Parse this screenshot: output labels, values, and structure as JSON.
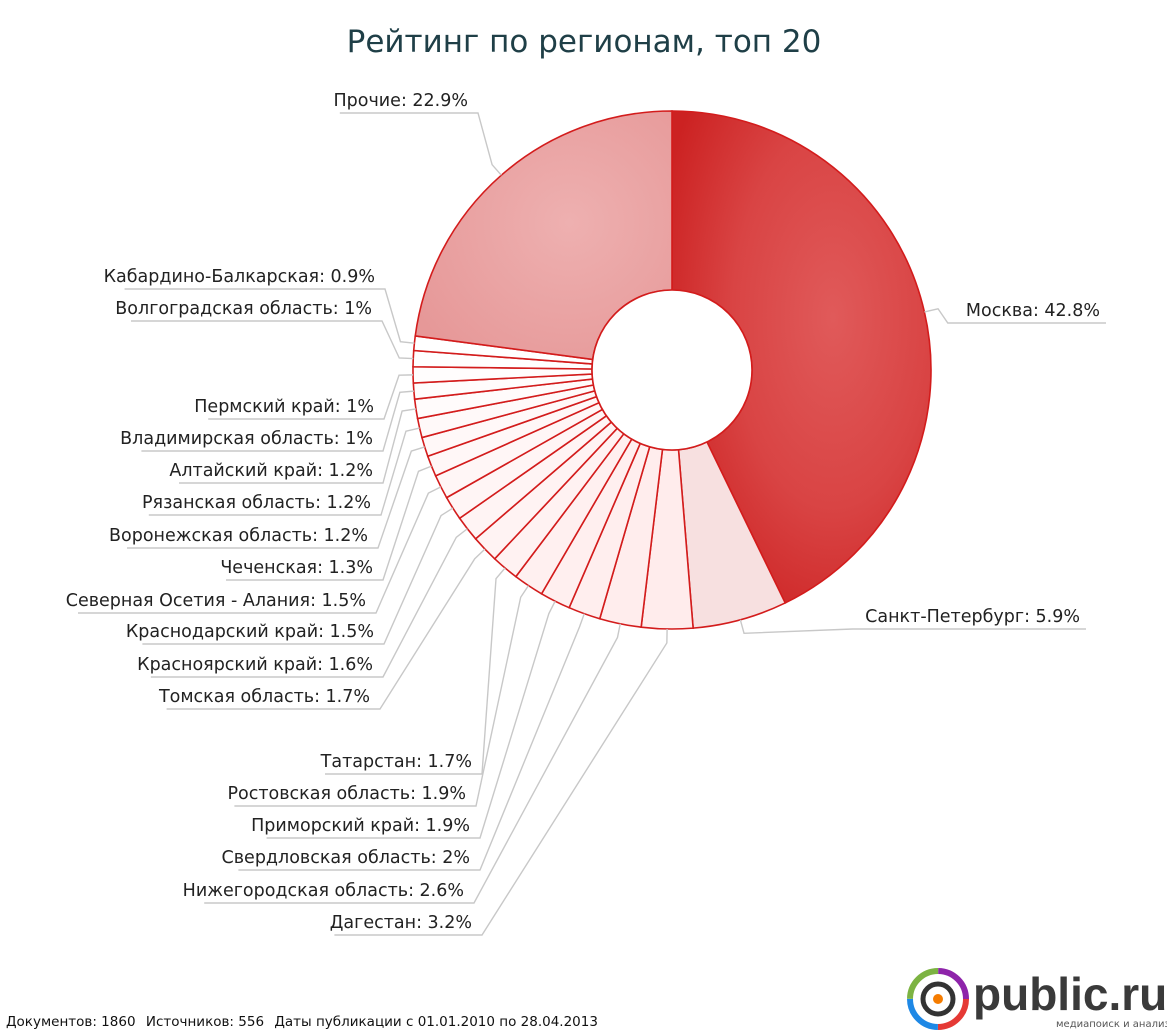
{
  "chart_data": {
    "type": "pie",
    "title": "Рейтинг по регионам, топ 20",
    "slices": [
      {
        "name": "Москва",
        "value": 42.8,
        "label": "Москва: 42.8%"
      },
      {
        "name": "Санкт-Петербург",
        "value": 5.9,
        "label": "Санкт-Петербург: 5.9%"
      },
      {
        "name": "Дагестан",
        "value": 3.2,
        "label": "Дагестан: 3.2%"
      },
      {
        "name": "Нижегородская область",
        "value": 2.6,
        "label": "Нижегородская область: 2.6%"
      },
      {
        "name": "Свердловская область",
        "value": 2.0,
        "label": "Свердловская область: 2%"
      },
      {
        "name": "Приморский край",
        "value": 1.9,
        "label": "Приморский край: 1.9%"
      },
      {
        "name": "Ростовская область",
        "value": 1.9,
        "label": "Ростовская область: 1.9%"
      },
      {
        "name": "Татарстан",
        "value": 1.7,
        "label": "Татарстан: 1.7%"
      },
      {
        "name": "Томская область",
        "value": 1.7,
        "label": "Томская область: 1.7%"
      },
      {
        "name": "Красноярский край",
        "value": 1.6,
        "label": "Красноярский край: 1.6%"
      },
      {
        "name": "Краснодарский край",
        "value": 1.5,
        "label": "Краснодарский край: 1.5%"
      },
      {
        "name": "Северная Осетия - Алания",
        "value": 1.5,
        "label": "Северная Осетия - Алания: 1.5%"
      },
      {
        "name": "Чеченская",
        "value": 1.3,
        "label": "Чеченская: 1.3%"
      },
      {
        "name": "Воронежская область",
        "value": 1.2,
        "label": "Воронежская область: 1.2%"
      },
      {
        "name": "Рязанская область",
        "value": 1.2,
        "label": "Рязанская область: 1.2%"
      },
      {
        "name": "Алтайский край",
        "value": 1.2,
        "label": "Алтайский край: 1.2%"
      },
      {
        "name": "Владимирская область",
        "value": 1.0,
        "label": "Владимирская область: 1%"
      },
      {
        "name": "Пермский край",
        "value": 1.0,
        "label": "Пермский край: 1%"
      },
      {
        "name": "Волгоградская область",
        "value": 1.0,
        "label": "Волгоградская область: 1%"
      },
      {
        "name": "Кабардино-Балкарская",
        "value": 0.9,
        "label": "Кабардино-Балкарская: 0.9%"
      },
      {
        "name": "Прочие",
        "value": 22.9,
        "label": "Прочие: 22.9%"
      }
    ],
    "colors": {
      "top": "#d32f2f",
      "second": "#f7e0e0",
      "others": "#e8a3a3",
      "minor": "#ffffff",
      "stroke": "#d31c1c",
      "leader": "#c8c8c8"
    },
    "legend": "none"
  },
  "footer": {
    "documents": "Документов: 1860",
    "sources": "Источников: 556",
    "dates": "Даты публикации с 01.01.2010 по 28.04.2013"
  },
  "logo": {
    "brand": "public.ru",
    "tagline": "медиапоиск и анализ"
  }
}
